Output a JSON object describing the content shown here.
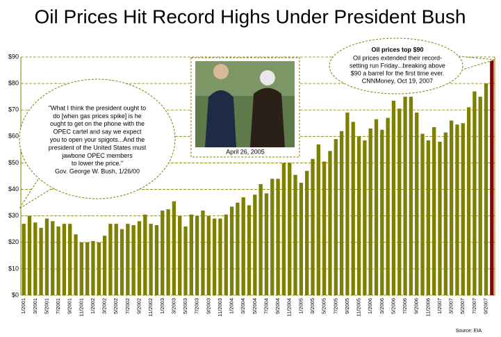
{
  "chart_data": {
    "type": "bar",
    "title": "Oil Prices Hit Record Highs Under President Bush",
    "categories": [
      "1/2001",
      null,
      "3/2001",
      null,
      "5/2001",
      null,
      "7/2001",
      null,
      "9/2001",
      null,
      "11/2001",
      null,
      "1/2002",
      null,
      "3/2002",
      null,
      "5/2002",
      null,
      "7/2002",
      null,
      "9/2002",
      null,
      "11/2002",
      null,
      "1/2003",
      null,
      "3/2003",
      null,
      "5/2003",
      null,
      "7/2003",
      null,
      "9/2003",
      null,
      "11/2003",
      null,
      "1/2004",
      null,
      "3/2004",
      null,
      "5/2004",
      null,
      "7/2004",
      null,
      "9/2004",
      null,
      "11/2004",
      null,
      "1/2005",
      null,
      "3/2005",
      null,
      "5/2005",
      null,
      "7/2005",
      null,
      "9/2005",
      null,
      "11/2005",
      null,
      "1/2006",
      null,
      "3/2006",
      null,
      "5/2006",
      null,
      "7/2006",
      null,
      "9/2006",
      null,
      "11/2006",
      null,
      "1/2007",
      null,
      "3/2007",
      null,
      "5/2007",
      null,
      "7/2007",
      null,
      "9/2007",
      null
    ],
    "values": [
      27,
      30,
      27.5,
      25.5,
      29,
      28,
      26,
      27,
      27,
      23,
      20,
      20,
      20.5,
      20,
      22.5,
      27,
      27,
      25,
      27,
      26.5,
      28,
      30.5,
      27,
      26.5,
      32,
      32.5,
      35.5,
      30,
      26,
      30.5,
      30,
      32,
      30,
      29,
      29,
      30.5,
      33.5,
      35,
      37,
      34,
      38,
      42,
      38.5,
      44,
      44,
      50,
      50,
      45.5,
      42.5,
      47,
      51.5,
      57,
      50.5,
      54.5,
      59,
      62,
      69,
      65.5,
      60,
      58.5,
      63,
      66.5,
      62.5,
      67,
      73.5,
      70.5,
      75,
      75,
      69,
      61,
      58.5,
      63.5,
      58,
      61.5,
      66,
      64.5,
      65,
      71,
      77,
      75,
      80,
      89
    ],
    "color": "#808000",
    "last_color": "#8b0000",
    "ylim": [
      0,
      90
    ],
    "yticks": [
      {
        "value": 0,
        "label": "$0"
      },
      {
        "value": 10,
        "label": "$10"
      },
      {
        "value": 20,
        "label": "$20"
      },
      {
        "value": 30,
        "label": "$30"
      },
      {
        "value": 40,
        "label": "$40"
      },
      {
        "value": 50,
        "label": "$50"
      },
      {
        "value": 60,
        "label": "$60"
      },
      {
        "value": 70,
        "label": "$70"
      },
      {
        "value": 80,
        "label": "$80"
      },
      {
        "value": 90,
        "label": "$90"
      }
    ],
    "grid": true,
    "annotations": {
      "quote": [
        "\"What I think the president ought to",
        "do [when gas prices spike] is he",
        "ought to get on the phone with the",
        "OPEC cartel and say we expect",
        "you to open your spigots...And the",
        "president of the United States must",
        "jawbone OPEC members",
        "to lower the price.\"",
        "Gov. George W. Bush, 1/26/00"
      ],
      "record_title": "Oil prices top $90",
      "record": [
        "Oil prices extended their record-",
        "setting run Friday...breaking above",
        "$90 a barrel for the first time ever.",
        "CNNMoney, Oct 19, 2007"
      ],
      "photo_caption": "April 26, 2005",
      "source": "Source: EIA"
    }
  }
}
